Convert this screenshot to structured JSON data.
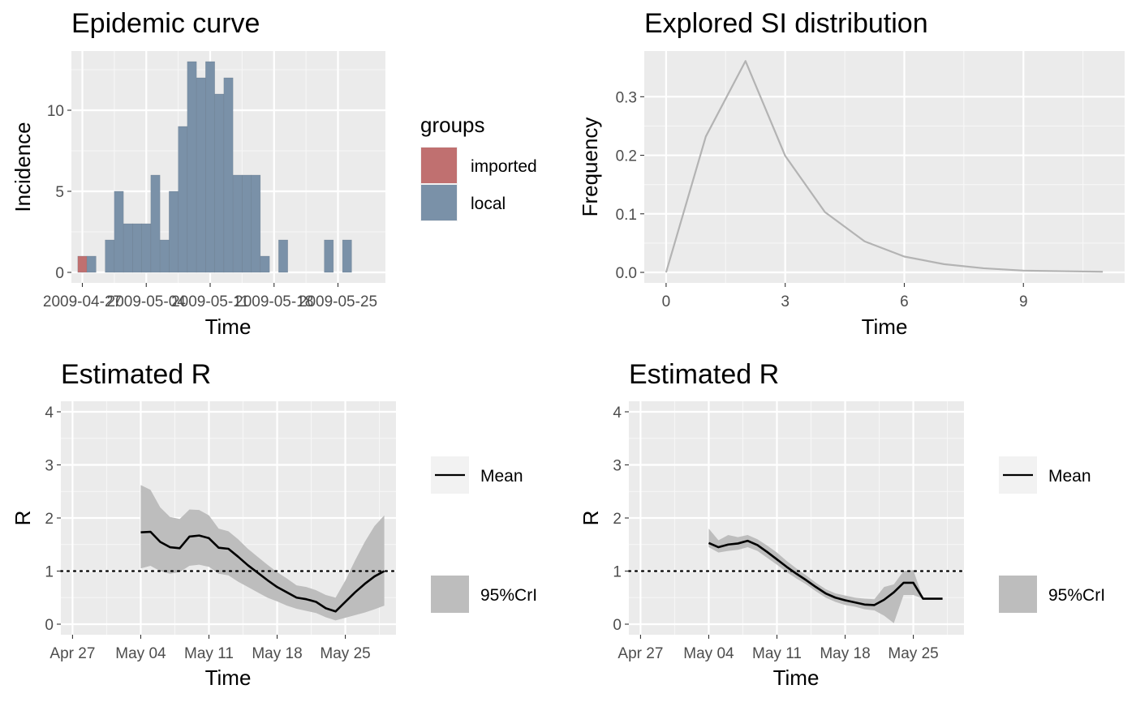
{
  "chart_data": [
    {
      "id": "epicurve",
      "type": "bar",
      "title": "Epidemic curve",
      "xlabel": "Time",
      "ylabel": "Incidence",
      "x_tick_labels": [
        "2009-04-27",
        "2009-05-04",
        "2009-05-11",
        "2009-05-18",
        "2009-05-25"
      ],
      "y_ticks": [
        0,
        5,
        10
      ],
      "xlim": [
        "2009-04-26",
        "2009-05-30"
      ],
      "ylim": [
        0,
        13
      ],
      "grid": true,
      "legend": {
        "title": "groups",
        "placement": "right",
        "entries": [
          {
            "label": "imported",
            "color": "#c07070"
          },
          {
            "label": "local",
            "color": "#7a91a8"
          }
        ]
      },
      "series": [
        {
          "name": "imported",
          "color": "#c07070",
          "points": [
            {
              "x": "2009-04-27",
              "y": 1
            }
          ]
        },
        {
          "name": "local",
          "color": "#7a91a8",
          "points": [
            {
              "x": "2009-04-28",
              "y": 1
            },
            {
              "x": "2009-04-30",
              "y": 2
            },
            {
              "x": "2009-05-01",
              "y": 5
            },
            {
              "x": "2009-05-02",
              "y": 3
            },
            {
              "x": "2009-05-03",
              "y": 3
            },
            {
              "x": "2009-05-04",
              "y": 3
            },
            {
              "x": "2009-05-05",
              "y": 6
            },
            {
              "x": "2009-05-06",
              "y": 2
            },
            {
              "x": "2009-05-07",
              "y": 5
            },
            {
              "x": "2009-05-08",
              "y": 9
            },
            {
              "x": "2009-05-09",
              "y": 13
            },
            {
              "x": "2009-05-10",
              "y": 12
            },
            {
              "x": "2009-05-11",
              "y": 13
            },
            {
              "x": "2009-05-12",
              "y": 11
            },
            {
              "x": "2009-05-13",
              "y": 12
            },
            {
              "x": "2009-05-14",
              "y": 6
            },
            {
              "x": "2009-05-15",
              "y": 6
            },
            {
              "x": "2009-05-16",
              "y": 6
            },
            {
              "x": "2009-05-17",
              "y": 1
            },
            {
              "x": "2009-05-19",
              "y": 2
            },
            {
              "x": "2009-05-24",
              "y": 2
            },
            {
              "x": "2009-05-26",
              "y": 2
            }
          ]
        }
      ]
    },
    {
      "id": "si",
      "type": "line",
      "title": "Explored SI distribution",
      "xlabel": "Time",
      "ylabel": "Frequency",
      "x_ticks": [
        0,
        3,
        6,
        9
      ],
      "y_ticks": [
        0.0,
        0.1,
        0.2,
        0.3
      ],
      "y_tick_labels": [
        "0.0",
        "0.1",
        "0.2",
        "0.3"
      ],
      "xlim": [
        -0.55,
        11.55
      ],
      "ylim": [
        0,
        0.36
      ],
      "grid": true,
      "series": [
        {
          "color": "#b3b3b3",
          "x": [
            0,
            1,
            2,
            3,
            4,
            5,
            6,
            7,
            8,
            9,
            10,
            11
          ],
          "y": [
            0.0,
            0.232,
            0.361,
            0.199,
            0.103,
            0.053,
            0.027,
            0.014,
            0.007,
            0.003,
            0.002,
            0.001
          ]
        }
      ]
    },
    {
      "id": "r1",
      "type": "line",
      "title": "Estimated R",
      "xlabel": "Time",
      "ylabel": "R",
      "x_tick_labels": [
        "Apr 27",
        "May 04",
        "May 11",
        "May 18",
        "May 25"
      ],
      "y_ticks": [
        0,
        1,
        2,
        3,
        4
      ],
      "xlim": [
        "2009-04-26",
        "2009-05-30"
      ],
      "ylim": [
        0,
        4
      ],
      "reference_line": 1,
      "grid": true,
      "legend": {
        "placement": "right",
        "entries": [
          {
            "label": "Mean",
            "kind": "line"
          },
          {
            "label": "95%CrI",
            "kind": "band"
          }
        ]
      },
      "dates": [
        "2009-05-04",
        "2009-05-05",
        "2009-05-06",
        "2009-05-07",
        "2009-05-08",
        "2009-05-09",
        "2009-05-10",
        "2009-05-11",
        "2009-05-12",
        "2009-05-13",
        "2009-05-14",
        "2009-05-15",
        "2009-05-16",
        "2009-05-17",
        "2009-05-18",
        "2009-05-19",
        "2009-05-20",
        "2009-05-21",
        "2009-05-22",
        "2009-05-23",
        "2009-05-24",
        "2009-05-25",
        "2009-05-26",
        "2009-05-27",
        "2009-05-28",
        "2009-05-29"
      ],
      "mean": [
        1.73,
        1.74,
        1.55,
        1.45,
        1.43,
        1.65,
        1.67,
        1.62,
        1.44,
        1.42,
        1.27,
        1.11,
        0.97,
        0.83,
        0.7,
        0.6,
        0.5,
        0.47,
        0.42,
        0.3,
        0.24,
        0.42,
        0.6,
        0.76,
        0.9,
        1.0
      ],
      "lower": [
        1.05,
        1.1,
        1.0,
        0.95,
        0.98,
        1.1,
        1.12,
        1.08,
        0.95,
        0.92,
        0.8,
        0.7,
        0.6,
        0.5,
        0.43,
        0.35,
        0.29,
        0.25,
        0.21,
        0.13,
        0.07,
        0.12,
        0.17,
        0.22,
        0.28,
        0.35
      ],
      "upper": [
        2.62,
        2.53,
        2.2,
        2.02,
        1.98,
        2.16,
        2.15,
        2.05,
        1.8,
        1.75,
        1.6,
        1.42,
        1.27,
        1.12,
        0.98,
        0.86,
        0.73,
        0.7,
        0.64,
        0.55,
        0.5,
        0.82,
        1.2,
        1.55,
        1.85,
        2.05
      ],
      "colors": {
        "band": "#bdbdbd",
        "mean": "#000000"
      }
    },
    {
      "id": "r2",
      "type": "line",
      "title": "Estimated R",
      "xlabel": "Time",
      "ylabel": "R",
      "x_tick_labels": [
        "Apr 27",
        "May 04",
        "May 11",
        "May 18",
        "May 25"
      ],
      "y_ticks": [
        0,
        1,
        2,
        3,
        4
      ],
      "xlim": [
        "2009-04-26",
        "2009-05-30"
      ],
      "ylim": [
        0,
        4
      ],
      "reference_line": 1,
      "grid": true,
      "legend": {
        "placement": "right",
        "entries": [
          {
            "label": "Mean",
            "kind": "line"
          },
          {
            "label": "95%CrI",
            "kind": "band"
          }
        ]
      },
      "dates": [
        "2009-05-04",
        "2009-05-05",
        "2009-05-06",
        "2009-05-07",
        "2009-05-08",
        "2009-05-09",
        "2009-05-10",
        "2009-05-11",
        "2009-05-12",
        "2009-05-13",
        "2009-05-14",
        "2009-05-15",
        "2009-05-16",
        "2009-05-17",
        "2009-05-18",
        "2009-05-19",
        "2009-05-20",
        "2009-05-21",
        "2009-05-22",
        "2009-05-23",
        "2009-05-24",
        "2009-05-25",
        "2009-05-26",
        "2009-05-27",
        "2009-05-28"
      ],
      "mean": [
        1.53,
        1.45,
        1.5,
        1.52,
        1.57,
        1.49,
        1.36,
        1.22,
        1.08,
        0.95,
        0.83,
        0.7,
        0.58,
        0.5,
        0.45,
        0.41,
        0.37,
        0.36,
        0.46,
        0.6,
        0.78,
        0.78,
        0.48,
        0.48,
        0.48
      ],
      "lower": [
        1.45,
        1.35,
        1.38,
        1.4,
        1.45,
        1.38,
        1.25,
        1.12,
        0.98,
        0.86,
        0.75,
        0.62,
        0.5,
        0.42,
        0.36,
        0.33,
        0.28,
        0.26,
        0.16,
        0.02,
        0.55,
        0.55,
        0.48,
        0.48,
        0.48
      ],
      "upper": [
        1.8,
        1.58,
        1.68,
        1.64,
        1.68,
        1.6,
        1.48,
        1.35,
        1.19,
        1.05,
        0.92,
        0.78,
        0.66,
        0.58,
        0.54,
        0.5,
        0.48,
        0.47,
        0.7,
        0.75,
        1.0,
        1.02,
        0.48,
        0.48,
        0.48
      ],
      "colors": {
        "band": "#bdbdbd",
        "mean": "#000000"
      }
    }
  ]
}
